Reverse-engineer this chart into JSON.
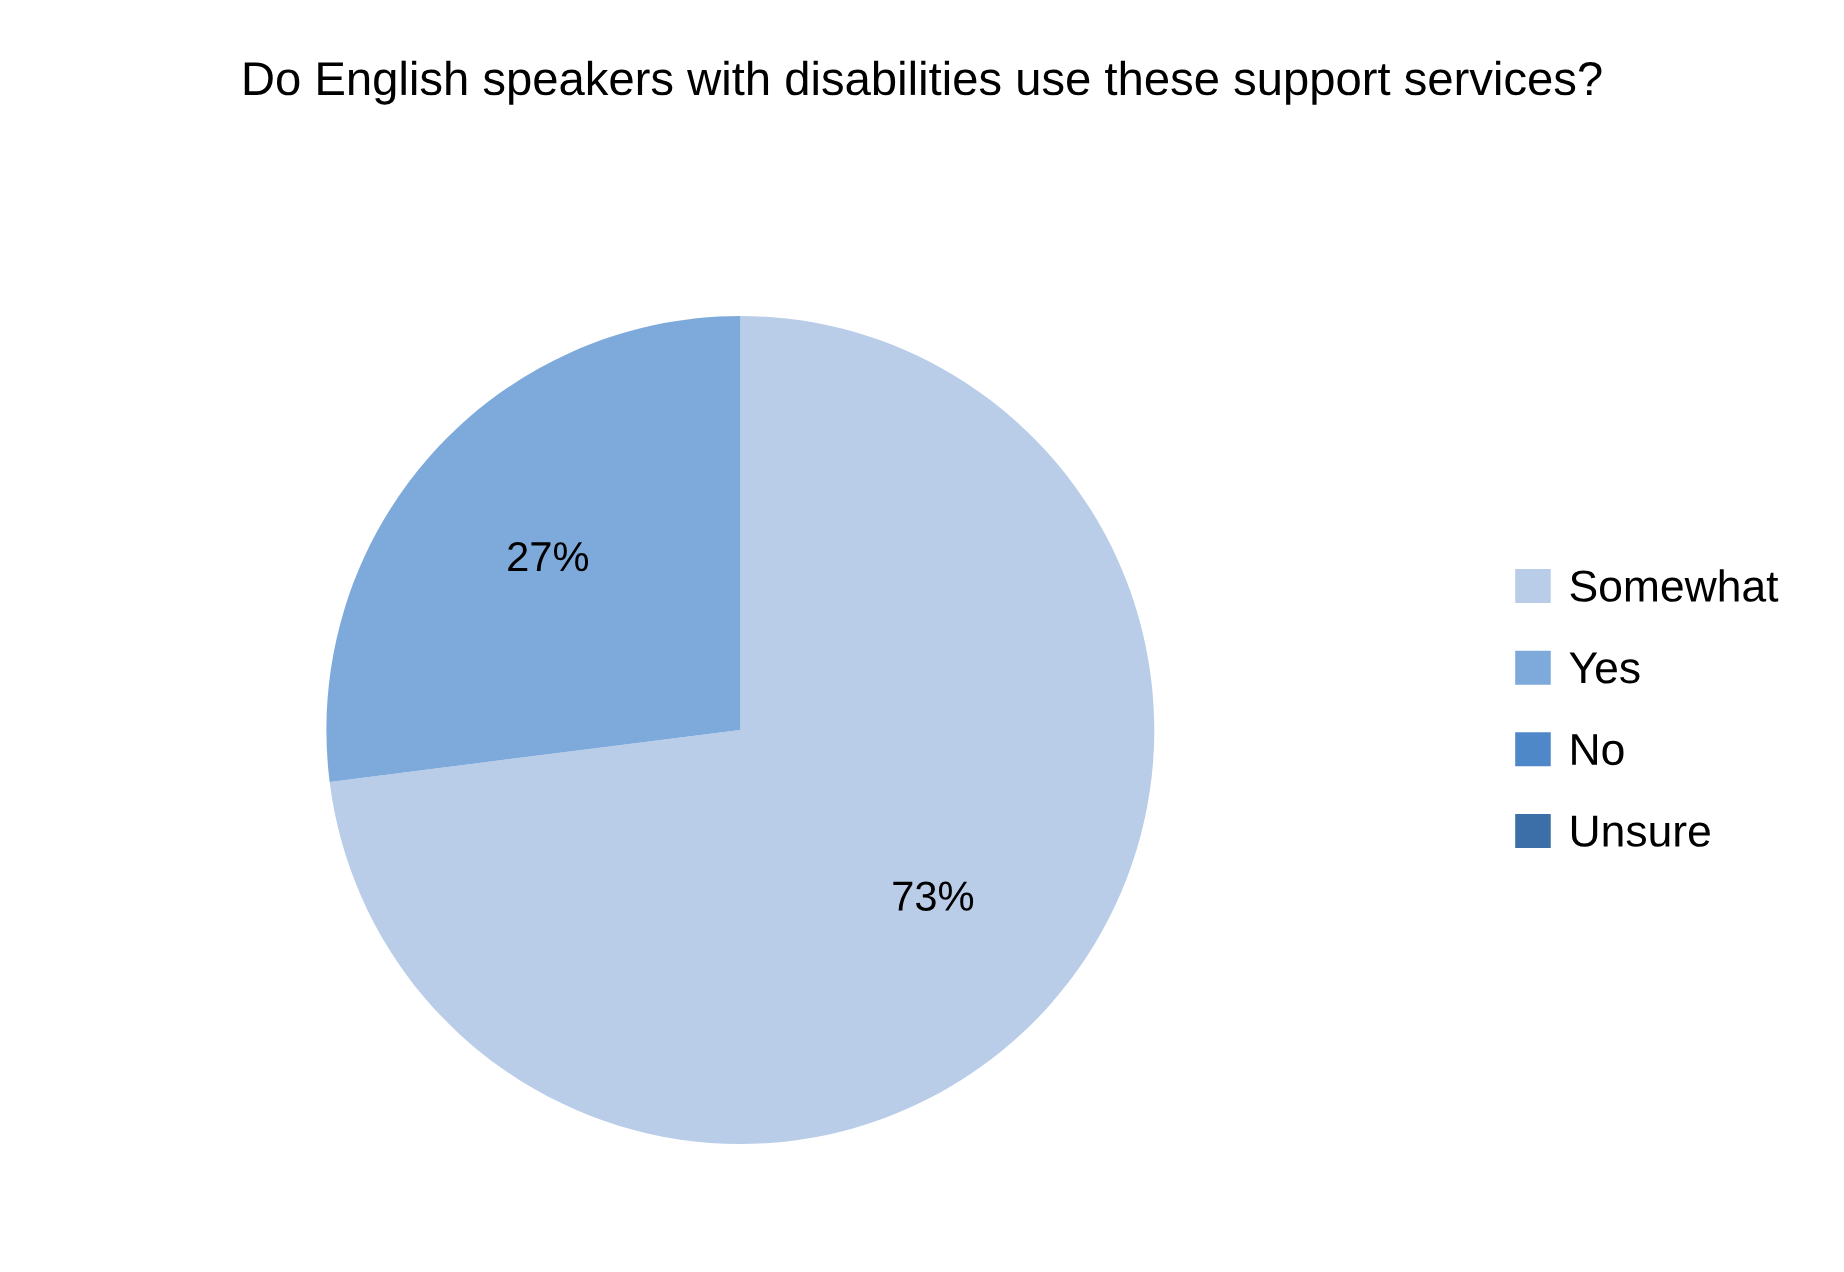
{
  "chart_data": {
    "type": "pie",
    "title": "Do English speakers with disabilities use these support services?",
    "categories": [
      "Somewhat",
      "Yes",
      "No",
      "Unsure"
    ],
    "values": [
      73,
      27,
      0,
      0
    ],
    "colors": [
      "#b9cde9",
      "#7eaadb",
      "#4f88c8",
      "#3c6ea8"
    ],
    "value_labels": [
      "73%",
      "27%",
      null,
      null
    ],
    "legend": "right"
  }
}
